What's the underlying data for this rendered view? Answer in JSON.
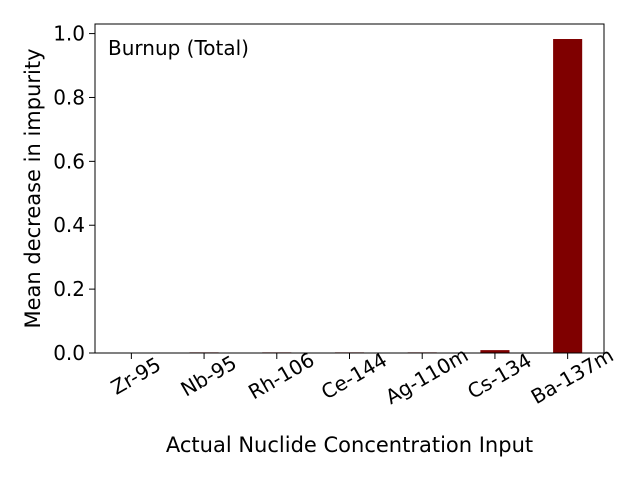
{
  "chart_data": {
    "type": "bar",
    "categories": [
      "Zr-95",
      "Nb-95",
      "Rh-106",
      "Ce-144",
      "Ag-110m",
      "Cs-134",
      "Ba-137m"
    ],
    "values": [
      0.0,
      0.002,
      0.002,
      0.002,
      0.002,
      0.009,
      0.983
    ],
    "title": "",
    "annotation": "Burnup (Total)",
    "xlabel": "Actual Nuclide Concentration Input",
    "ylabel": "Mean decrease in impurity",
    "ylim": [
      0,
      1.03
    ],
    "yticks": [
      "0.0",
      "0.2",
      "0.4",
      "0.6",
      "0.8",
      "1.0"
    ],
    "bar_color": "#7f0000",
    "grid": false,
    "legend": "none"
  }
}
